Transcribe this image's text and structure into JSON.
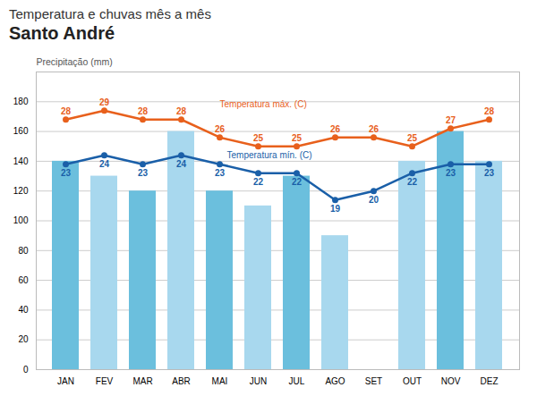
{
  "chart_data": {
    "type": "bar",
    "title": "Temperatura e chuvas mês a mês",
    "subtitle": "Santo André",
    "ylabel": "Precipitação (mm)",
    "categories": [
      "JAN",
      "FEV",
      "MAR",
      "ABR",
      "MAI",
      "JUN",
      "JUL",
      "AGO",
      "SET",
      "OUT",
      "NOV",
      "DEZ"
    ],
    "series": [
      {
        "name": "Precipitação (mm)",
        "type": "bar",
        "colors": [
          "#6BBFDD",
          "#A8D8EE",
          "#6BBFDD",
          "#A8D8EE",
          "#6BBFDD",
          "#A8D8EE",
          "#6BBFDD",
          "#A8D8EE",
          "#6BBFDD",
          "#A8D8EE",
          "#6BBFDD",
          "#A8D8EE"
        ],
        "values": [
          140,
          130,
          120,
          160,
          120,
          110,
          130,
          90,
          0,
          140,
          160,
          140
        ]
      },
      {
        "name": "Temperatura máx. (C)",
        "type": "line",
        "axis": "y2",
        "color": "#E8601C",
        "marker": "circle",
        "data_labels": true,
        "values": [
          28,
          29,
          28,
          28,
          26,
          25,
          25,
          26,
          26,
          25,
          27,
          28
        ]
      },
      {
        "name": "Temperatura mín. (C)",
        "type": "line",
        "axis": "y2",
        "color": "#1A5FA8",
        "marker": "circle",
        "data_labels": true,
        "values": [
          23,
          24,
          23,
          24,
          23,
          22,
          22,
          19,
          20,
          22,
          23,
          23
        ]
      }
    ],
    "ylim": [
      0,
      200
    ],
    "yticks": [
      0,
      20,
      40,
      60,
      80,
      100,
      120,
      140,
      160,
      180
    ],
    "y2lim": [
      0,
      33.33
    ],
    "y2ticks": [],
    "grid": true
  }
}
